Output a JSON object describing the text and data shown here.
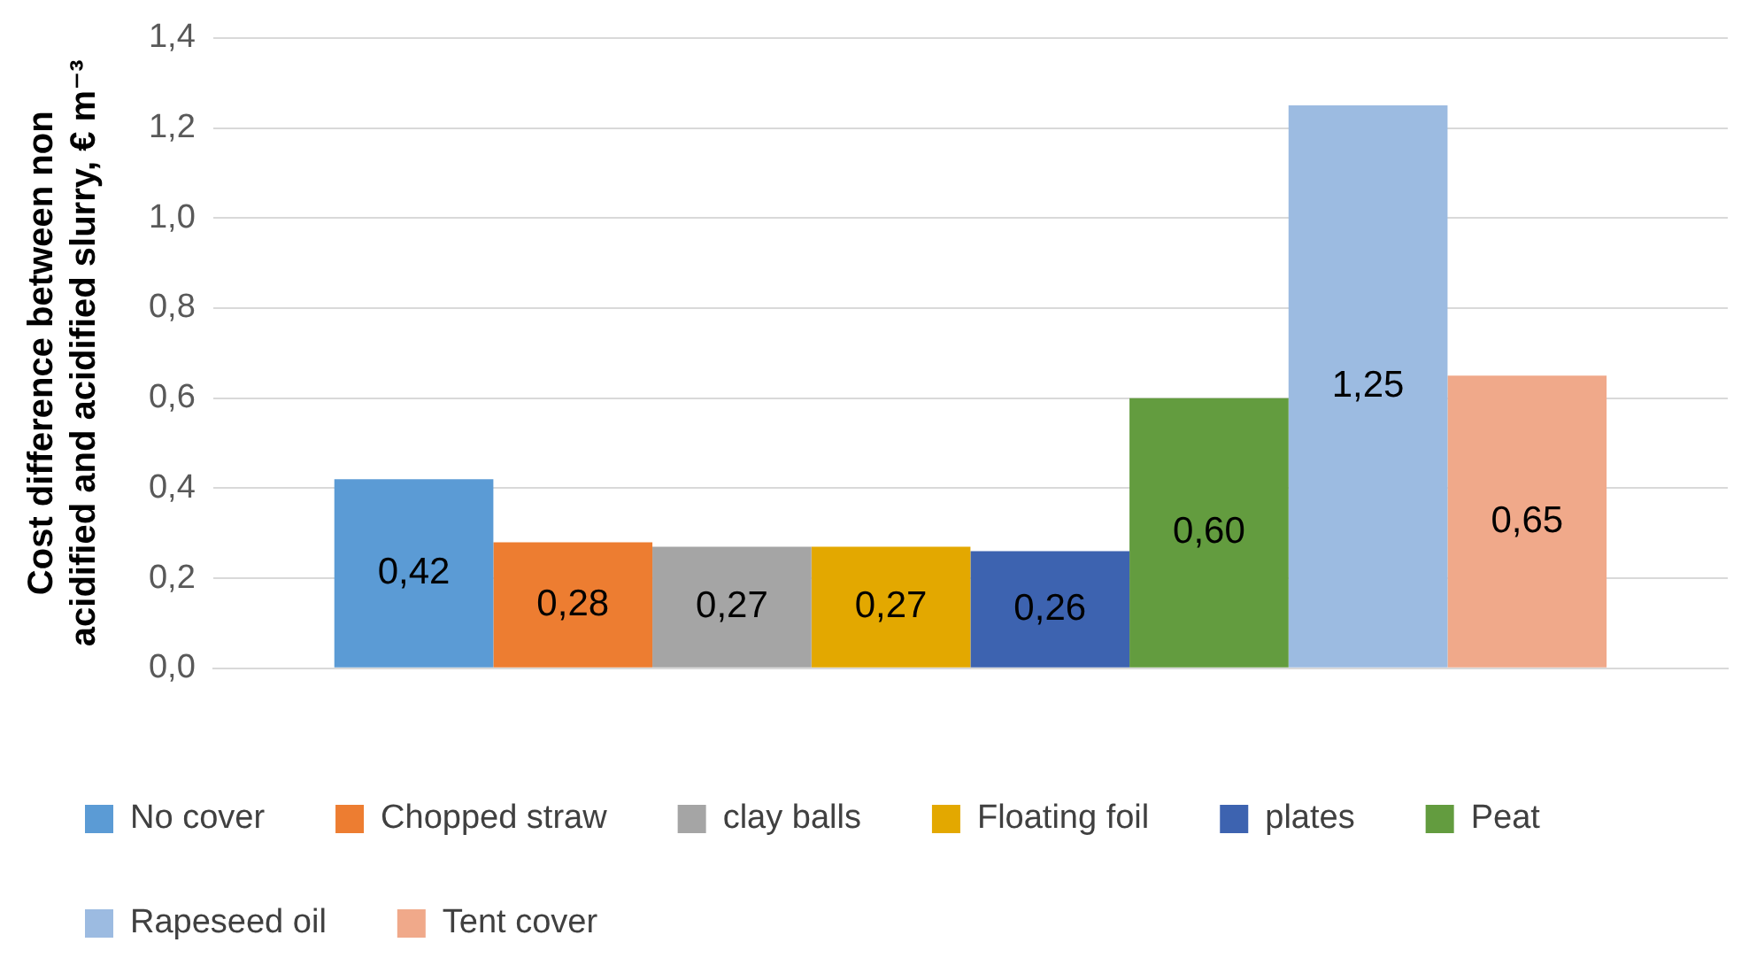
{
  "chart_data": {
    "type": "bar",
    "ylabel": "Cost difference between non acidified and acidified slurry, € m⁻³",
    "categories": [
      null
    ],
    "series": [
      {
        "name": "No cover",
        "color": "#5b9bd5",
        "values": [
          0.42
        ],
        "value_labels": [
          "0,42"
        ]
      },
      {
        "name": "Chopped straw",
        "color": "#ed7d31",
        "values": [
          0.28
        ],
        "value_labels": [
          "0,28"
        ]
      },
      {
        "name": "clay balls",
        "color": "#a5a5a5",
        "values": [
          0.27
        ],
        "value_labels": [
          "0,27"
        ]
      },
      {
        "name": "Floating foil",
        "color": "#e3a800",
        "values": [
          0.27
        ],
        "value_labels": [
          "0,27"
        ]
      },
      {
        "name": "plates",
        "color": "#3d63b0",
        "values": [
          0.26
        ],
        "value_labels": [
          "0,26"
        ]
      },
      {
        "name": "Peat",
        "color": "#639c3f",
        "values": [
          0.6
        ],
        "value_labels": [
          "0,60"
        ]
      },
      {
        "name": "Rapeseed oil",
        "color": "#9cbbe1",
        "values": [
          1.25
        ],
        "value_labels": [
          "1,25"
        ]
      },
      {
        "name": "Tent cover",
        "color": "#f0a98a",
        "values": [
          0.65
        ],
        "value_labels": [
          "0,65"
        ]
      }
    ],
    "ylim": [
      0,
      1.4
    ],
    "yticks": [
      {
        "value": 0,
        "label": "0,0"
      },
      {
        "value": 0.2,
        "label": "0,2"
      },
      {
        "value": 0.4,
        "label": "0,4"
      },
      {
        "value": 0.6,
        "label": "0,6"
      },
      {
        "value": 0.8,
        "label": "0,8"
      },
      {
        "value": 1,
        "label": "1,0"
      },
      {
        "value": 1.2,
        "label": "1,2"
      },
      {
        "value": 1.4,
        "label": "1,4"
      }
    ],
    "grid": "y",
    "legend": "bottom"
  }
}
